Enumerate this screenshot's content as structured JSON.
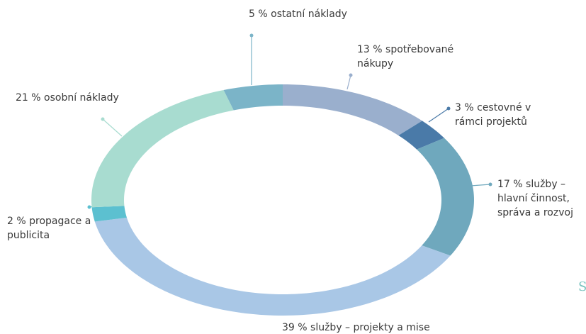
{
  "chart_data": {
    "type": "donut",
    "categories": [
      "spotřebované nákupy",
      "cestovné v rámci projektů",
      "služby – hlavní činnost, správa a rozvoj",
      "služby – projekty a mise",
      "propagace a publicita",
      "osobní náklady",
      "ostatní náklady"
    ],
    "values": [
      13,
      3,
      17,
      39,
      2,
      21,
      5
    ],
    "value_labels": [
      "13 %",
      "3 %",
      "17 %",
      "39 %",
      "2 %",
      "21 %",
      "5 %"
    ],
    "colors": [
      "#9aafcd",
      "#4a7aa8",
      "#6fa8bd",
      "#a9c7e6",
      "#5cc0d0",
      "#a8dcd0",
      "#7bb4c8"
    ],
    "cropped_text": "S"
  }
}
